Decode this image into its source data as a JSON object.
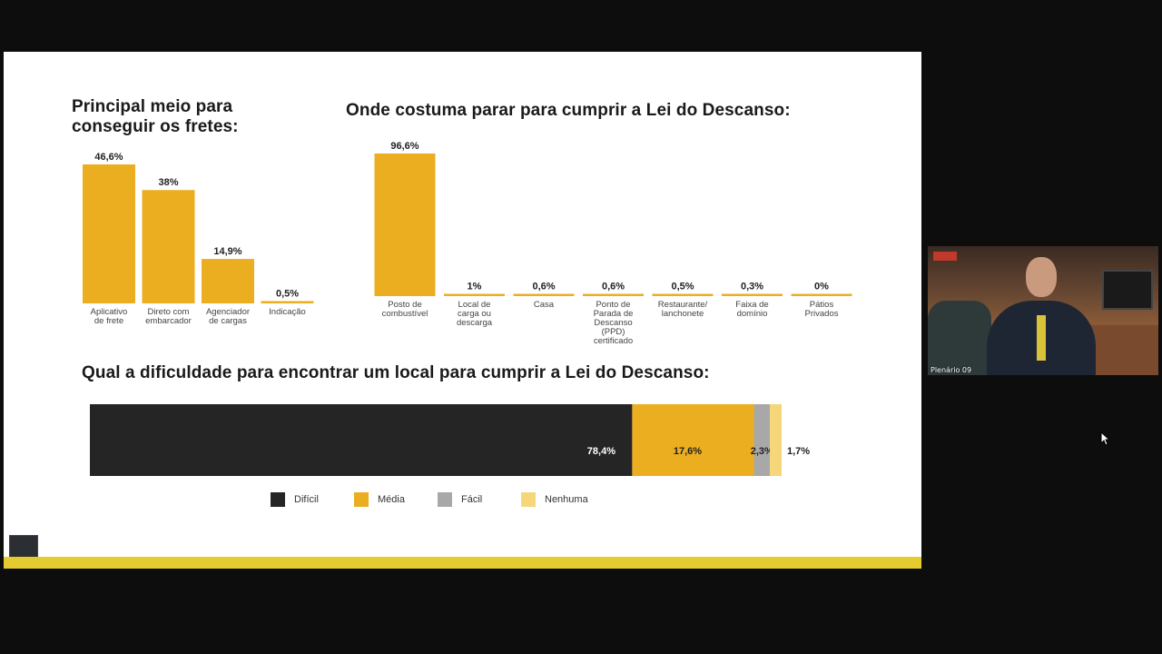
{
  "colors": {
    "primary": "#ecae21",
    "dark": "#252525",
    "gray": "#a8a8a8",
    "light": "#f5d77a",
    "stripe": "#e4cc30"
  },
  "webcam": {
    "label": "Plenário 09",
    "logo_text": ""
  },
  "chart_data": [
    {
      "type": "bar",
      "title": "Principal meio para conseguir os fretes:",
      "categories": [
        "Aplicativo de frete",
        "Direto com embarcador",
        "Agenciador de cargas",
        "Indicação"
      ],
      "values": [
        46.6,
        38,
        14.9,
        0.5
      ],
      "value_labels": [
        "46,6%",
        "38%",
        "14,9%",
        "0,5%"
      ],
      "unit": "%",
      "ylim": [
        0,
        46.6
      ],
      "grid": false,
      "legend": "none"
    },
    {
      "type": "bar",
      "title": "Onde costuma parar para cumprir a Lei do Descanso:",
      "categories": [
        "Posto de combustível",
        "Local de carga ou descarga",
        "Casa",
        "Ponto de Parada de Descanso (PPD) certificado",
        "Restaurante/ lanchonete",
        "Faixa de domínio",
        "Pátios Privados"
      ],
      "values": [
        96.6,
        1,
        0.6,
        0.6,
        0.5,
        0.3,
        0
      ],
      "value_labels": [
        "96,6%",
        "1%",
        "0,6%",
        "0,6%",
        "0,5%",
        "0,3%",
        "0%"
      ],
      "unit": "%",
      "ylim": [
        0,
        96.6
      ],
      "grid": false,
      "legend": "none"
    },
    {
      "type": "stacked-bar-horizontal",
      "title": "Qual a dificuldade para encontrar um local para cumprir a Lei do Descanso:",
      "series": [
        {
          "name": "Difícil",
          "value": 78.4,
          "label": "78,4%",
          "color": "#252525"
        },
        {
          "name": "Média",
          "value": 17.6,
          "label": "17,6%",
          "color": "#ecae21"
        },
        {
          "name": "Fácil",
          "value": 2.3,
          "label": "2,3%",
          "color": "#a8a8a8"
        },
        {
          "name": "Nenhuma",
          "value": 1.7,
          "label": "1,7%",
          "color": "#f5d77a"
        }
      ],
      "xlim": [
        0,
        100
      ],
      "grid": false,
      "legend": "bottom"
    }
  ]
}
